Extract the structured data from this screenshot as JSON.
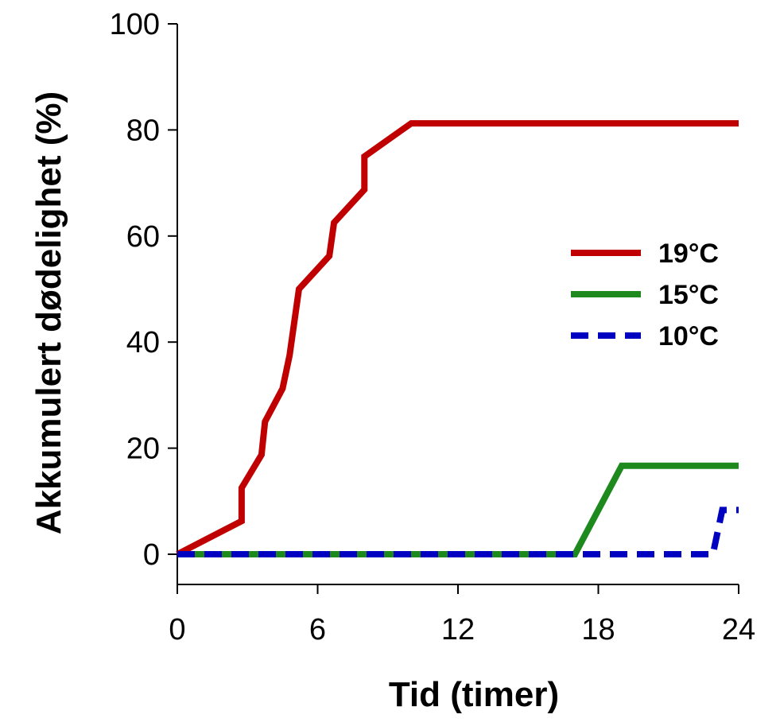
{
  "chart_data": {
    "type": "line",
    "title": "",
    "xlabel": "Tid (timer)",
    "ylabel": "Akkumulert dødelighet (%)",
    "xlim": [
      0,
      24
    ],
    "ylim": [
      0,
      100
    ],
    "xticks": [
      0,
      6,
      12,
      18,
      24
    ],
    "yticks": [
      0,
      20,
      40,
      60,
      80,
      100
    ],
    "grid": false,
    "legend_position": "right",
    "series": [
      {
        "name": "19°C",
        "color": "#c00000",
        "style": "solid",
        "points": [
          [
            0,
            0
          ],
          [
            2.75,
            6.25
          ],
          [
            2.75,
            12.5
          ],
          [
            3.6,
            18.75
          ],
          [
            3.75,
            25
          ],
          [
            4.5,
            31.25
          ],
          [
            4.8,
            37.5
          ],
          [
            5.2,
            50
          ],
          [
            6.5,
            56.25
          ],
          [
            6.7,
            62.5
          ],
          [
            8,
            68.75
          ],
          [
            8,
            75
          ],
          [
            10,
            81.25
          ],
          [
            24,
            81.25
          ]
        ]
      },
      {
        "name": "15°C",
        "color": "#1e8a1e",
        "style": "solid",
        "points": [
          [
            0,
            0
          ],
          [
            17,
            0
          ],
          [
            19,
            16.67
          ],
          [
            24,
            16.67
          ]
        ]
      },
      {
        "name": "10°C",
        "color": "#0000c0",
        "style": "dashed",
        "points": [
          [
            0,
            0
          ],
          [
            22.9,
            0
          ],
          [
            23.3,
            8.33
          ],
          [
            24,
            8.33
          ]
        ]
      }
    ]
  }
}
